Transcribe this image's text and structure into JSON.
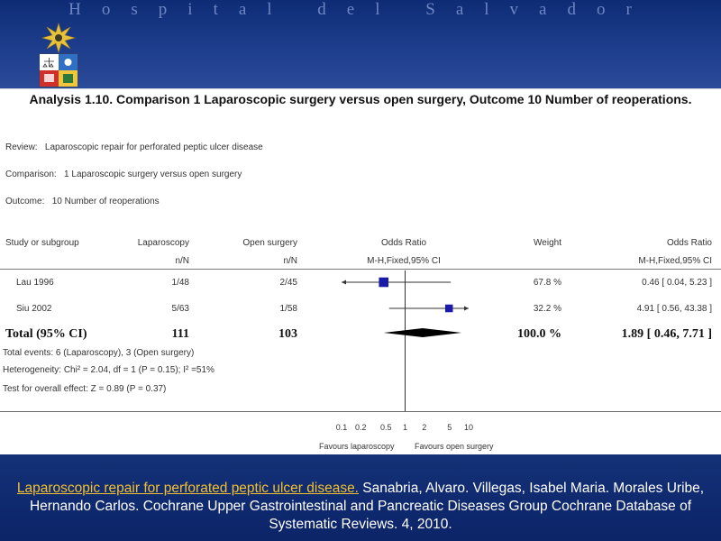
{
  "header": {
    "hospital_name": "Hospital del Salvador"
  },
  "analysis": {
    "title": "Analysis 1.10.   Comparison 1 Laparoscopic surgery versus open surgery, Outcome 10 Number of reoperations.",
    "review_label": "Review:",
    "review": "Laparoscopic repair for perforated peptic ulcer disease",
    "comparison_label": "Comparison:",
    "comparison": "1 Laparoscopic surgery versus open surgery",
    "outcome_label": "Outcome:",
    "outcome": "10 Number of reoperations"
  },
  "columns": {
    "study": "Study or subgroup",
    "laparoscopy": "Laparoscopy",
    "laparoscopy_sub": "n/N",
    "open": "Open surgery",
    "open_sub": "n/N",
    "odds_ratio": "Odds Ratio",
    "odds_ratio_sub": "M-H,Fixed,95% CI",
    "weight": "Weight",
    "odds_ratio_ci": "Odds Ratio",
    "odds_ratio_ci_sub": "M-H,Fixed,95% CI"
  },
  "chart_data": {
    "type": "forest",
    "x_scale": "log",
    "xlim": [
      0.1,
      10
    ],
    "ticks": [
      "0.1",
      "0.2",
      "0.5",
      "1",
      "2",
      "5",
      "10"
    ],
    "tick_values": [
      0.1,
      0.2,
      0.5,
      1,
      2,
      5,
      10
    ],
    "null_line": 1,
    "favours_left": "Favours laparoscopy",
    "favours_right": "Favours open surgery",
    "studies": [
      {
        "name": "Lau 1996",
        "laparoscopy": "1/48",
        "open": "2/45",
        "or": 0.46,
        "lo": 0.04,
        "hi": 5.23,
        "weight_pct": 67.8,
        "weight": "67.8 %",
        "ci_text": "0.46 [ 0.04, 5.23 ]"
      },
      {
        "name": "Siu 2002",
        "laparoscopy": "5/63",
        "open": "1/58",
        "or": 4.91,
        "lo": 0.56,
        "hi": 43.38,
        "weight_pct": 32.2,
        "weight": "32.2 %",
        "ci_text": "4.91 [ 0.56, 43.38 ]"
      }
    ],
    "total": {
      "label": "Total (95% CI)",
      "laparoscopy": "111",
      "open": "103",
      "or": 1.89,
      "lo": 0.46,
      "hi": 7.71,
      "weight": "100.0 %",
      "ci_text": "1.89 [ 0.46, 7.71 ]"
    },
    "total_events": "Total events: 6 (Laparoscopy), 3 (Open surgery)",
    "heterogeneity": "Heterogeneity: Chi² = 2.04, df = 1 (P = 0.15); I² =51%",
    "overall_effect": "Test for overall effect: Z = 0.89 (P = 0.37)",
    "colors": {
      "marker": "#1a1aa8",
      "diamond": "#000000",
      "line": "#333333"
    }
  },
  "citation": {
    "link_text": "Laparoscopic repair for perforated peptic ulcer disease.",
    "rest": " Sanabria, Alvaro. Villegas, Isabel Maria. Morales Uribe, Hernando Carlos. Cochrane Upper Gastrointestinal and Pancreatic Diseases Group Cochrane Database of Systematic Reviews. 4, 2010."
  }
}
